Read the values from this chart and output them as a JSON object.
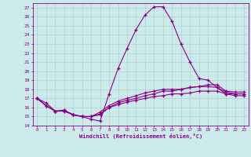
{
  "xlabel": "Windchill (Refroidissement éolien,°C)",
  "background_color": "#cceaea",
  "line_color": "#880088",
  "xlim": [
    -0.5,
    23.5
  ],
  "ylim": [
    14,
    27.5
  ],
  "xticks": [
    0,
    1,
    2,
    3,
    4,
    5,
    6,
    7,
    8,
    9,
    10,
    11,
    12,
    13,
    14,
    15,
    16,
    17,
    18,
    19,
    20,
    21,
    22,
    23
  ],
  "yticks": [
    14,
    15,
    16,
    17,
    18,
    19,
    20,
    21,
    22,
    23,
    24,
    25,
    26,
    27
  ],
  "s1x": [
    0,
    1,
    2,
    3,
    4,
    5,
    6,
    7,
    8,
    9,
    10,
    11,
    12,
    13,
    14,
    15,
    16,
    17,
    18,
    19,
    20,
    21,
    22,
    23
  ],
  "s1y": [
    17.0,
    16.5,
    15.6,
    15.7,
    15.2,
    15.0,
    14.7,
    14.5,
    17.5,
    20.3,
    22.5,
    24.6,
    26.2,
    27.1,
    27.1,
    25.5,
    23.0,
    21.0,
    19.2,
    19.0,
    18.2,
    17.5,
    17.5,
    17.5
  ],
  "s2x": [
    0,
    1,
    2,
    3,
    4,
    5,
    6,
    7,
    8,
    9,
    10,
    11,
    12,
    13,
    14,
    15,
    16,
    17,
    18,
    19,
    20,
    21,
    22,
    23
  ],
  "s2y": [
    17.0,
    16.2,
    15.6,
    15.6,
    15.2,
    15.0,
    15.0,
    15.3,
    16.0,
    16.5,
    16.8,
    17.0,
    17.3,
    17.5,
    17.8,
    17.8,
    18.0,
    18.2,
    18.3,
    18.5,
    18.5,
    17.8,
    17.7,
    17.7
  ],
  "s3x": [
    0,
    1,
    2,
    3,
    4,
    5,
    6,
    7,
    8,
    9,
    10,
    11,
    12,
    13,
    14,
    15,
    16,
    17,
    18,
    19,
    20,
    21,
    22,
    23
  ],
  "s3y": [
    17.0,
    16.2,
    15.6,
    15.7,
    15.2,
    15.0,
    15.0,
    15.5,
    16.2,
    16.7,
    17.0,
    17.3,
    17.6,
    17.8,
    18.0,
    18.0,
    18.0,
    18.2,
    18.3,
    18.3,
    18.2,
    17.7,
    17.5,
    17.5
  ],
  "s4x": [
    0,
    1,
    2,
    3,
    4,
    5,
    6,
    7,
    8,
    9,
    10,
    11,
    12,
    13,
    14,
    15,
    16,
    17,
    18,
    19,
    20,
    21,
    22,
    23
  ],
  "s4y": [
    17.0,
    16.2,
    15.6,
    15.6,
    15.2,
    15.0,
    15.0,
    15.2,
    16.0,
    16.3,
    16.6,
    16.8,
    17.0,
    17.2,
    17.3,
    17.5,
    17.5,
    17.6,
    17.8,
    17.8,
    17.8,
    17.5,
    17.3,
    17.3
  ]
}
